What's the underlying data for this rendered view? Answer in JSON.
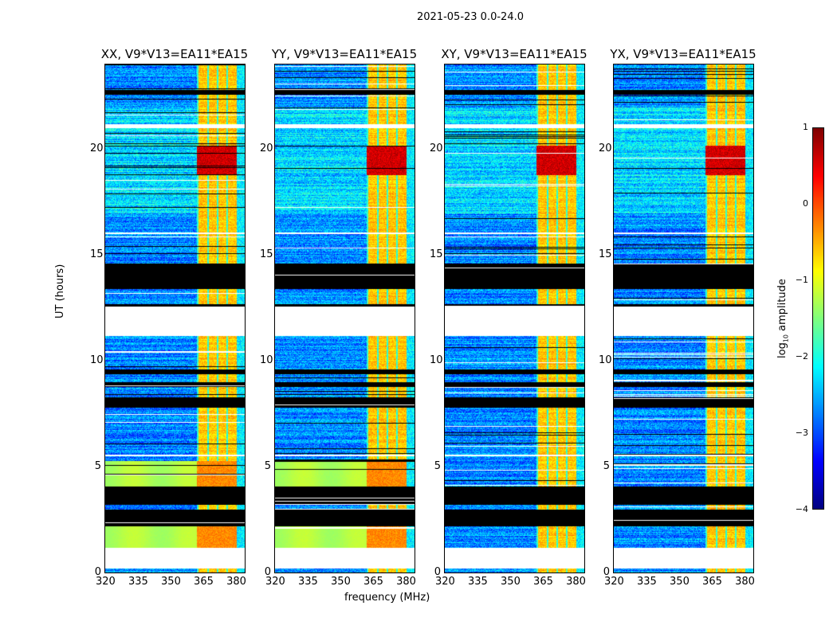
{
  "chart_data": {
    "type": "heatmap",
    "title": "2021-05-23 0.0-24.0",
    "xlabel": "frequency (MHz)",
    "ylabel": "UT (hours)",
    "xlim": [
      320,
      384
    ],
    "ylim": [
      0,
      24
    ],
    "xticks": [
      "320",
      "335",
      "350",
      "365",
      "380"
    ],
    "xtick_values": [
      320,
      335,
      350,
      365,
      380
    ],
    "yticks": [
      "0",
      "5",
      "10",
      "15",
      "20"
    ],
    "ytick_values": [
      0,
      5,
      10,
      15,
      20
    ],
    "panels": [
      {
        "title": "XX, V9*V13=EA11*EA15",
        "smooth_green": true
      },
      {
        "title": "YY, V9*V13=EA11*EA15",
        "smooth_green": true
      },
      {
        "title": "XY, V9*V13=EA11*EA15",
        "smooth_green": false
      },
      {
        "title": "YX, V9*V13=EA11*EA15",
        "smooth_green": false
      }
    ],
    "colorbar": {
      "label": "log10 amplitude",
      "label_main": "log",
      "label_sub": "10",
      "label_rest": " amplitude",
      "range": [
        -4,
        1
      ],
      "ticks": [
        "1",
        "0",
        "−1",
        "−2",
        "−3",
        "−4"
      ],
      "tick_values": [
        1,
        0,
        -1,
        -2,
        -3,
        -4
      ],
      "colormap": "jet"
    },
    "features": {
      "background_level": -2.7,
      "rfi_band_MHz": [
        362,
        380
      ],
      "rfi_level": -0.6,
      "strong_rfi_hours": [
        18.8,
        20.2
      ],
      "strong_rfi_level": 0.6,
      "blank_hours": [
        [
          0.2,
          1.2
        ],
        [
          11.2,
          12.6
        ],
        [
          21.0,
          21.2
        ],
        [
          16.0,
          16.1
        ],
        [
          5.5,
          5.6
        ]
      ],
      "flagged_hours": [
        [
          2.2,
          3.0
        ],
        [
          3.2,
          4.1
        ],
        [
          13.4,
          14.6
        ],
        [
          7.8,
          8.3
        ],
        [
          8.8,
          9.0
        ],
        [
          9.4,
          9.6
        ],
        [
          12.6,
          12.7
        ],
        [
          22.6,
          22.8
        ]
      ],
      "smooth_green_hours": [
        [
          1.2,
          2.2
        ],
        [
          4.1,
          5.3
        ]
      ]
    }
  }
}
